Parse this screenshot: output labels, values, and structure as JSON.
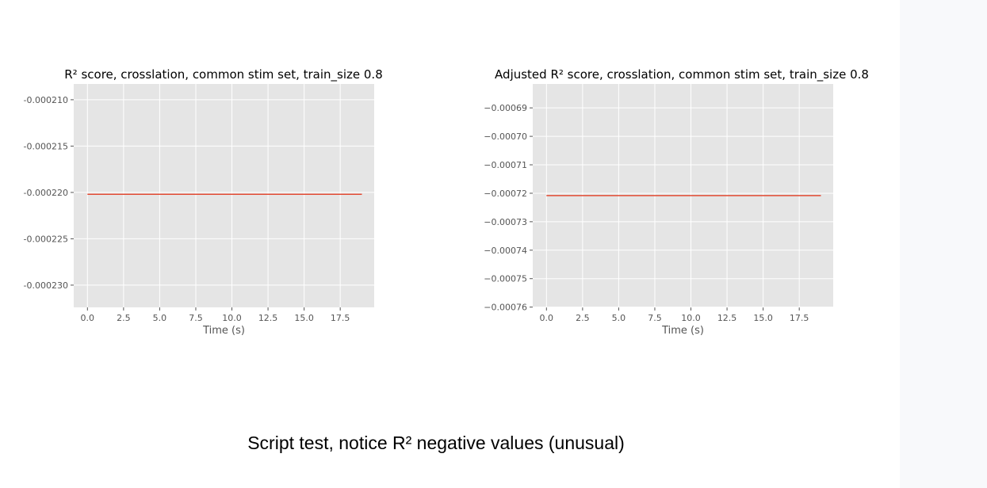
{
  "colors": {
    "plot_background": "#e5e5e5",
    "grid": "#ffffff",
    "line": "#e24a33",
    "tick_text": "#555555",
    "title_text": "#000000",
    "side_panel": "#f8f9fb"
  },
  "caption": "Script test, notice R² negative values (unusual)",
  "chart_data": [
    {
      "type": "line",
      "title": "R² score, crosslation, common stim set, train_size 0.8",
      "xlabel": "Time (s)",
      "ylabel": "",
      "xlim": [
        -0.95,
        19.85
      ],
      "ylim": [
        -0.0002324,
        -0.0002083
      ],
      "xticks": [
        0.0,
        2.5,
        5.0,
        7.5,
        10.0,
        12.5,
        15.0,
        17.5
      ],
      "xtick_labels": [
        "0.0",
        "2.5",
        "5.0",
        "7.5",
        "10.0",
        "12.5",
        "15.0",
        "17.5"
      ],
      "yticks": [
        -0.00021,
        -0.000215,
        -0.00022,
        -0.000225,
        -0.00023
      ],
      "ytick_labels": [
        "-0.000210",
        "-0.000215",
        "-0.000220",
        "-0.000225",
        "-0.000230"
      ],
      "grid": true,
      "series": [
        {
          "x": [
            0,
            1,
            2,
            3,
            4,
            5,
            6,
            7,
            8,
            9,
            10,
            11,
            12,
            13,
            14,
            15,
            16,
            17,
            18,
            19
          ],
          "values": [
            -0.0002202,
            -0.0002202,
            -0.0002202,
            -0.0002202,
            -0.0002202,
            -0.0002202,
            -0.0002202,
            -0.0002202,
            -0.0002202,
            -0.0002202,
            -0.0002202,
            -0.0002202,
            -0.0002202,
            -0.0002202,
            -0.0002202,
            -0.0002202,
            -0.0002202,
            -0.0002202,
            -0.0002202,
            -0.0002202
          ]
        }
      ]
    },
    {
      "type": "line",
      "title": "Adjusted R² score, crosslation, common stim set, train_size 0.8",
      "xlabel": "Time (s)",
      "ylabel": "",
      "xlim": [
        -0.95,
        19.85
      ],
      "ylim": [
        -0.0007601,
        -0.0006816
      ],
      "xticks": [
        0.0,
        2.5,
        5.0,
        7.5,
        10.0,
        12.5,
        15.0,
        17.5
      ],
      "xtick_labels": [
        "0.0",
        "2.5",
        "5.0",
        "7.5",
        "10.0",
        "12.5",
        "15.0",
        "17.5"
      ],
      "yticks": [
        -0.00069,
        -0.0007,
        -0.00071,
        -0.00072,
        -0.00073,
        -0.00074,
        -0.00075,
        -0.00076
      ],
      "ytick_labels": [
        "−0.00069",
        "−0.00070",
        "−0.00071",
        "−0.00072",
        "−0.00073",
        "−0.00074",
        "−0.00075",
        "−0.00076"
      ],
      "grid": true,
      "series": [
        {
          "x": [
            0,
            1,
            2,
            3,
            4,
            5,
            6,
            7,
            8,
            9,
            10,
            11,
            12,
            13,
            14,
            15,
            16,
            17,
            18,
            19
          ],
          "values": [
            -0.0007208,
            -0.0007208,
            -0.0007208,
            -0.0007208,
            -0.0007208,
            -0.0007208,
            -0.0007208,
            -0.0007208,
            -0.0007208,
            -0.0007208,
            -0.0007208,
            -0.0007208,
            -0.0007208,
            -0.0007208,
            -0.0007208,
            -0.0007208,
            -0.0007208,
            -0.0007208,
            -0.0007208,
            -0.0007208
          ]
        }
      ]
    }
  ]
}
